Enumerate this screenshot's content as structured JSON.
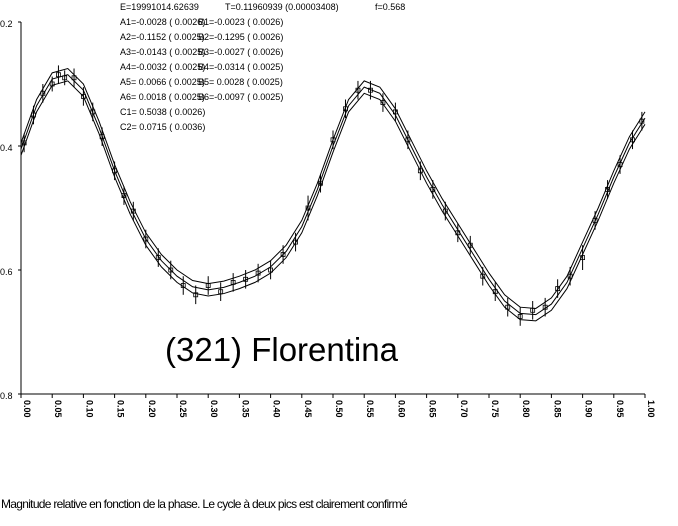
{
  "chart_data": {
    "type": "scatter",
    "title": "(321) Florentina",
    "caption": "Magnitude relative en fonction de la phase. Le cycle à deux pics est clairement confirmé",
    "parameters_header": [
      "E=19991014.62639",
      "T=0.11960939 (0.00003408)",
      "f=0.568"
    ],
    "coefficients_a": [
      "A1=-0.0028 ( 0.0026)",
      "A2=-0.1152 ( 0.0025)",
      "A3=-0.0143 ( 0.0025)",
      "A4=-0.0032 ( 0.0025)",
      "A5= 0.0066 ( 0.0025)",
      "A6= 0.0018 ( 0.0025)",
      "C1= 0.5038 ( 0.0026)",
      "C2= 0.0715 ( 0.0036)"
    ],
    "coefficients_b": [
      "B1=-0.0023 ( 0.0026)",
      "B2=-0.1295 ( 0.0026)",
      "B3=-0.0027 ( 0.0026)",
      "B4=-0.0314 ( 0.0025)",
      "B5= 0.0028 ( 0.0025)",
      "B6=-0.0097 ( 0.0025)"
    ],
    "xlim": [
      0,
      1
    ],
    "ylim": [
      0.2,
      0.8
    ],
    "y_inverted": true,
    "xticks": [
      {
        "value": 0,
        "label": "0.00"
      },
      {
        "value": 0.05,
        "label": "0.05"
      },
      {
        "value": 0.1,
        "label": "0.10"
      },
      {
        "value": 0.15,
        "label": "0.15"
      },
      {
        "value": 0.2,
        "label": "0.20"
      },
      {
        "value": 0.25,
        "label": "0.25"
      },
      {
        "value": 0.3,
        "label": "0.30"
      },
      {
        "value": 0.35,
        "label": "0.35"
      },
      {
        "value": 0.4,
        "label": "0.40"
      },
      {
        "value": 0.45,
        "label": "0.45"
      },
      {
        "value": 0.5,
        "label": "0.50"
      },
      {
        "value": 0.55,
        "label": "0.55"
      },
      {
        "value": 0.6,
        "label": "0.60"
      },
      {
        "value": 0.65,
        "label": "0.65"
      },
      {
        "value": 0.7,
        "label": "0.70"
      },
      {
        "value": 0.75,
        "label": "0.75"
      },
      {
        "value": 0.8,
        "label": "0.80"
      },
      {
        "value": 0.85,
        "label": "0.85"
      },
      {
        "value": 0.9,
        "label": "0.90"
      },
      {
        "value": 0.95,
        "label": "0.95"
      },
      {
        "value": 1,
        "label": "1.00"
      }
    ],
    "yticks": [
      0.2,
      0.4,
      0.6,
      0.8
    ],
    "series": [
      {
        "mode": "markers",
        "color": "#000000",
        "x": [
          0.005,
          0.02,
          0.035,
          0.05,
          0.06,
          0.07,
          0.085,
          0.1,
          0.115,
          0.13,
          0.15,
          0.165,
          0.18,
          0.2,
          0.22,
          0.24,
          0.26,
          0.28,
          0.3,
          0.32,
          0.34,
          0.36,
          0.38,
          0.4,
          0.42,
          0.44,
          0.46,
          0.48,
          0.5,
          0.52,
          0.54,
          0.56,
          0.58,
          0.6,
          0.62,
          0.64,
          0.66,
          0.68,
          0.7,
          0.72,
          0.74,
          0.76,
          0.78,
          0.8,
          0.82,
          0.84,
          0.86,
          0.88,
          0.9,
          0.92,
          0.94,
          0.96,
          0.98,
          0.995
        ],
        "values": [
          0.395,
          0.35,
          0.315,
          0.3,
          0.285,
          0.29,
          0.29,
          0.32,
          0.345,
          0.385,
          0.44,
          0.48,
          0.505,
          0.55,
          0.58,
          0.6,
          0.625,
          0.64,
          0.625,
          0.635,
          0.62,
          0.615,
          0.605,
          0.6,
          0.575,
          0.555,
          0.5,
          0.46,
          0.39,
          0.34,
          0.31,
          0.31,
          0.33,
          0.345,
          0.39,
          0.44,
          0.47,
          0.505,
          0.54,
          0.56,
          0.61,
          0.635,
          0.66,
          0.675,
          0.665,
          0.66,
          0.63,
          0.61,
          0.58,
          0.52,
          0.47,
          0.43,
          0.39,
          0.36
        ],
        "errors": [
          0.015,
          0.015,
          0.015,
          0.012,
          0.015,
          0.012,
          0.015,
          0.015,
          0.015,
          0.015,
          0.015,
          0.015,
          0.015,
          0.015,
          0.015,
          0.015,
          0.015,
          0.015,
          0.015,
          0.015,
          0.015,
          0.015,
          0.015,
          0.015,
          0.015,
          0.015,
          0.02,
          0.015,
          0.015,
          0.015,
          0.015,
          0.015,
          0.015,
          0.015,
          0.015,
          0.015,
          0.015,
          0.015,
          0.015,
          0.015,
          0.015,
          0.015,
          0.015,
          0.015,
          0.015,
          0.015,
          0.015,
          0.015,
          0.02,
          0.015,
          0.015,
          0.015,
          0.015,
          0.015
        ]
      },
      {
        "mode": "line",
        "color": "#000000",
        "x": [
          0,
          0.025,
          0.05,
          0.075,
          0.1,
          0.125,
          0.15,
          0.175,
          0.2,
          0.225,
          0.25,
          0.275,
          0.3,
          0.325,
          0.35,
          0.375,
          0.4,
          0.425,
          0.45,
          0.475,
          0.5,
          0.525,
          0.55,
          0.575,
          0.6,
          0.625,
          0.65,
          0.675,
          0.7,
          0.725,
          0.75,
          0.775,
          0.8,
          0.825,
          0.85,
          0.875,
          0.9,
          0.925,
          0.95,
          0.975,
          1
        ],
        "values": [
          0.405,
          0.335,
          0.292,
          0.285,
          0.31,
          0.37,
          0.44,
          0.5,
          0.55,
          0.585,
          0.61,
          0.627,
          0.632,
          0.628,
          0.62,
          0.61,
          0.595,
          0.57,
          0.53,
          0.47,
          0.4,
          0.335,
          0.305,
          0.315,
          0.35,
          0.4,
          0.45,
          0.495,
          0.535,
          0.575,
          0.615,
          0.65,
          0.67,
          0.672,
          0.655,
          0.62,
          0.565,
          0.51,
          0.45,
          0.395,
          0.355
        ]
      },
      {
        "mode": "line",
        "color": "#000000",
        "x": [
          0,
          0.025,
          0.05,
          0.075,
          0.1,
          0.125,
          0.15,
          0.175,
          0.2,
          0.225,
          0.25,
          0.275,
          0.3,
          0.325,
          0.35,
          0.375,
          0.4,
          0.425,
          0.45,
          0.475,
          0.5,
          0.525,
          0.55,
          0.575,
          0.6,
          0.625,
          0.65,
          0.675,
          0.7,
          0.725,
          0.75,
          0.775,
          0.8,
          0.825,
          0.85,
          0.875,
          0.9,
          0.925,
          0.95,
          0.975,
          1
        ],
        "values": [
          0.395,
          0.325,
          0.282,
          0.275,
          0.3,
          0.36,
          0.43,
          0.49,
          0.54,
          0.575,
          0.6,
          0.617,
          0.622,
          0.618,
          0.61,
          0.6,
          0.585,
          0.56,
          0.52,
          0.46,
          0.39,
          0.325,
          0.295,
          0.305,
          0.34,
          0.39,
          0.44,
          0.485,
          0.525,
          0.565,
          0.605,
          0.64,
          0.66,
          0.662,
          0.645,
          0.61,
          0.555,
          0.5,
          0.44,
          0.385,
          0.345
        ]
      },
      {
        "mode": "line",
        "color": "#000000",
        "x": [
          0,
          0.025,
          0.05,
          0.075,
          0.1,
          0.125,
          0.15,
          0.175,
          0.2,
          0.225,
          0.25,
          0.275,
          0.3,
          0.325,
          0.35,
          0.375,
          0.4,
          0.425,
          0.45,
          0.475,
          0.5,
          0.525,
          0.55,
          0.575,
          0.6,
          0.625,
          0.65,
          0.675,
          0.7,
          0.725,
          0.75,
          0.775,
          0.8,
          0.825,
          0.85,
          0.875,
          0.9,
          0.925,
          0.95,
          0.975,
          1
        ],
        "values": [
          0.415,
          0.345,
          0.302,
          0.295,
          0.32,
          0.38,
          0.45,
          0.51,
          0.56,
          0.595,
          0.62,
          0.637,
          0.642,
          0.638,
          0.63,
          0.62,
          0.605,
          0.58,
          0.54,
          0.48,
          0.41,
          0.345,
          0.315,
          0.325,
          0.36,
          0.41,
          0.46,
          0.505,
          0.545,
          0.585,
          0.625,
          0.66,
          0.68,
          0.682,
          0.665,
          0.63,
          0.575,
          0.52,
          0.46,
          0.405,
          0.365
        ]
      }
    ]
  }
}
